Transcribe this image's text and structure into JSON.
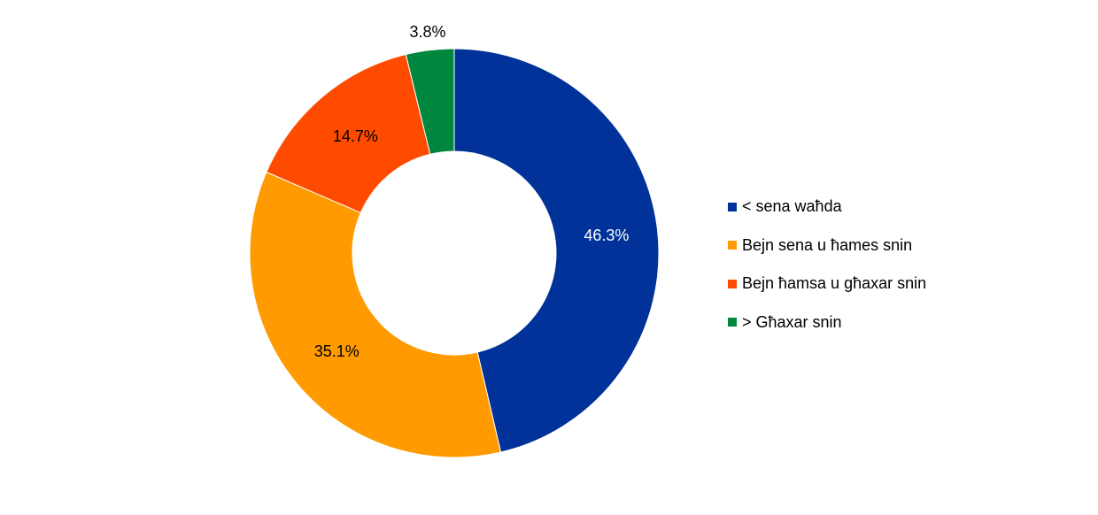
{
  "chart_data": {
    "type": "pie",
    "variant": "donut",
    "title": "",
    "start_angle": "top, clockwise",
    "legend_position": "right",
    "slices": [
      {
        "label": "< sena waħda",
        "value": 46.3,
        "data_label": "46.3%",
        "color": "#003299",
        "label_color": "#ffffff"
      },
      {
        "label": "Bejn sena u ħames snin",
        "value": 35.1,
        "data_label": "35.1%",
        "color": "#FF9B00",
        "label_color": "#000000"
      },
      {
        "label": "Bejn ħamsa u għaxar snin",
        "value": 14.7,
        "data_label": "14.7%",
        "color": "#FF4B00",
        "label_color": "#000000"
      },
      {
        "label": "> Għaxar snin",
        "value": 3.8,
        "data_label": "3.8%",
        "color": "#00873D",
        "label_color": "#000000"
      }
    ]
  }
}
